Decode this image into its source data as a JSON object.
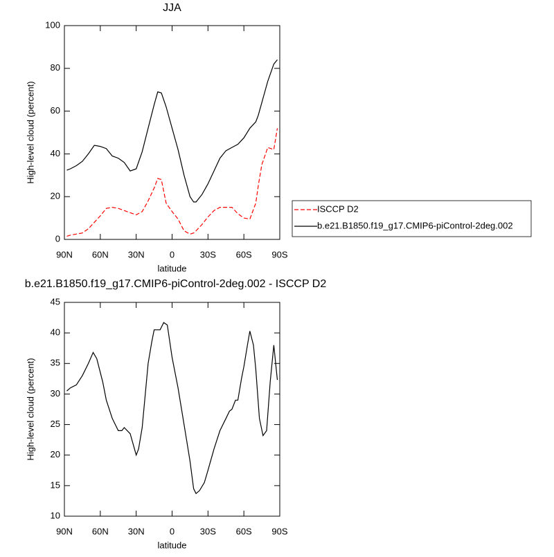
{
  "chart_data": [
    {
      "type": "line",
      "title": "JJA",
      "xlabel": "latitude",
      "ylabel": "High-level cloud (percent)",
      "x": [
        88,
        85,
        80,
        75,
        70,
        65,
        60,
        55,
        50,
        45,
        40,
        35,
        30,
        25,
        20,
        15,
        12,
        9,
        5,
        0,
        -5,
        -10,
        -15,
        -18,
        -20,
        -25,
        -30,
        -35,
        -40,
        -45,
        -50,
        -55,
        -60,
        -65,
        -70,
        -72,
        -75,
        -80,
        -85,
        -88
      ],
      "xlim": [
        90,
        -90
      ],
      "xticks": [
        {
          "value": 90,
          "label": "90N"
        },
        {
          "value": 60,
          "label": "60N"
        },
        {
          "value": 30,
          "label": "30N"
        },
        0,
        {
          "value": -30,
          "label": "30S"
        },
        {
          "value": -60,
          "label": "60S"
        },
        {
          "value": -90,
          "label": "90S"
        }
      ],
      "ylim": [
        0,
        100
      ],
      "yticks": [
        0,
        20,
        40,
        60,
        80,
        100
      ],
      "series": [
        {
          "name": "ISCCP D2",
          "color": "#ff0000",
          "dashed": true,
          "values": [
            1.5,
            2,
            2.5,
            3,
            5,
            8,
            11,
            14.5,
            15,
            14.5,
            13.5,
            12.5,
            11.5,
            13,
            18,
            24,
            28.5,
            28,
            17,
            13,
            9.5,
            4,
            2.5,
            3,
            4,
            7,
            10.5,
            13.5,
            15,
            15,
            15,
            12,
            10,
            9.5,
            17,
            25,
            35,
            43,
            42,
            52
          ]
        },
        {
          "name": "b.e21.B1850.f19_g17.CMIP6-piControl-2deg.002",
          "color": "#000000",
          "dashed": false,
          "values": [
            32.4,
            33,
            34.5,
            36.5,
            40,
            44,
            43.5,
            42.5,
            39,
            38,
            36,
            32,
            33,
            41,
            52,
            63,
            69,
            68.5,
            62,
            52,
            42,
            30,
            20,
            17.5,
            17.5,
            21,
            26,
            32,
            38,
            41.5,
            43,
            44.5,
            47.5,
            52,
            55,
            58,
            64,
            74,
            82,
            84
          ]
        }
      ]
    },
    {
      "type": "line",
      "title": "b.e21.B1850.f19_g17.CMIP6-piControl-2deg.002 - ISCCP D2",
      "xlabel": "latitude",
      "ylabel": "High-level cloud (percent)",
      "x": [
        88,
        85,
        80,
        75,
        70,
        66,
        63,
        58,
        55,
        50,
        45,
        42,
        40,
        35,
        30,
        28,
        25,
        20,
        17,
        15,
        10,
        7,
        4,
        0,
        -5,
        -10,
        -15,
        -18,
        -20,
        -23,
        -27,
        -30,
        -35,
        -40,
        -45,
        -48,
        -50,
        -53,
        -55,
        -58,
        -60,
        -63,
        -65,
        -68,
        -70,
        -73,
        -76,
        -79,
        -82,
        -85,
        -88
      ],
      "xlim": [
        90,
        -90
      ],
      "xticks": [
        {
          "value": 90,
          "label": "90N"
        },
        {
          "value": 60,
          "label": "60N"
        },
        {
          "value": 30,
          "label": "30N"
        },
        0,
        {
          "value": -30,
          "label": "30S"
        },
        {
          "value": -60,
          "label": "60S"
        },
        {
          "value": -90,
          "label": "90S"
        }
      ],
      "ylim": [
        10,
        45
      ],
      "yticks": [
        10,
        15,
        20,
        25,
        30,
        35,
        40,
        45
      ],
      "series": [
        {
          "name": null,
          "color": "#000000",
          "dashed": false,
          "values": [
            30.5,
            31,
            31.5,
            33,
            35,
            36.8,
            35.8,
            32,
            29,
            26,
            24,
            24,
            24.5,
            23.5,
            20,
            21,
            24.5,
            35,
            38.5,
            40.5,
            40.5,
            41.7,
            41.3,
            36,
            31,
            25,
            19,
            14.5,
            13.7,
            14.2,
            15.5,
            17.5,
            21,
            24,
            26,
            27.2,
            27.5,
            29,
            29,
            32.5,
            34.5,
            38,
            40.3,
            38,
            34,
            26,
            23.2,
            24,
            32,
            38,
            32.3
          ]
        }
      ]
    }
  ]
}
